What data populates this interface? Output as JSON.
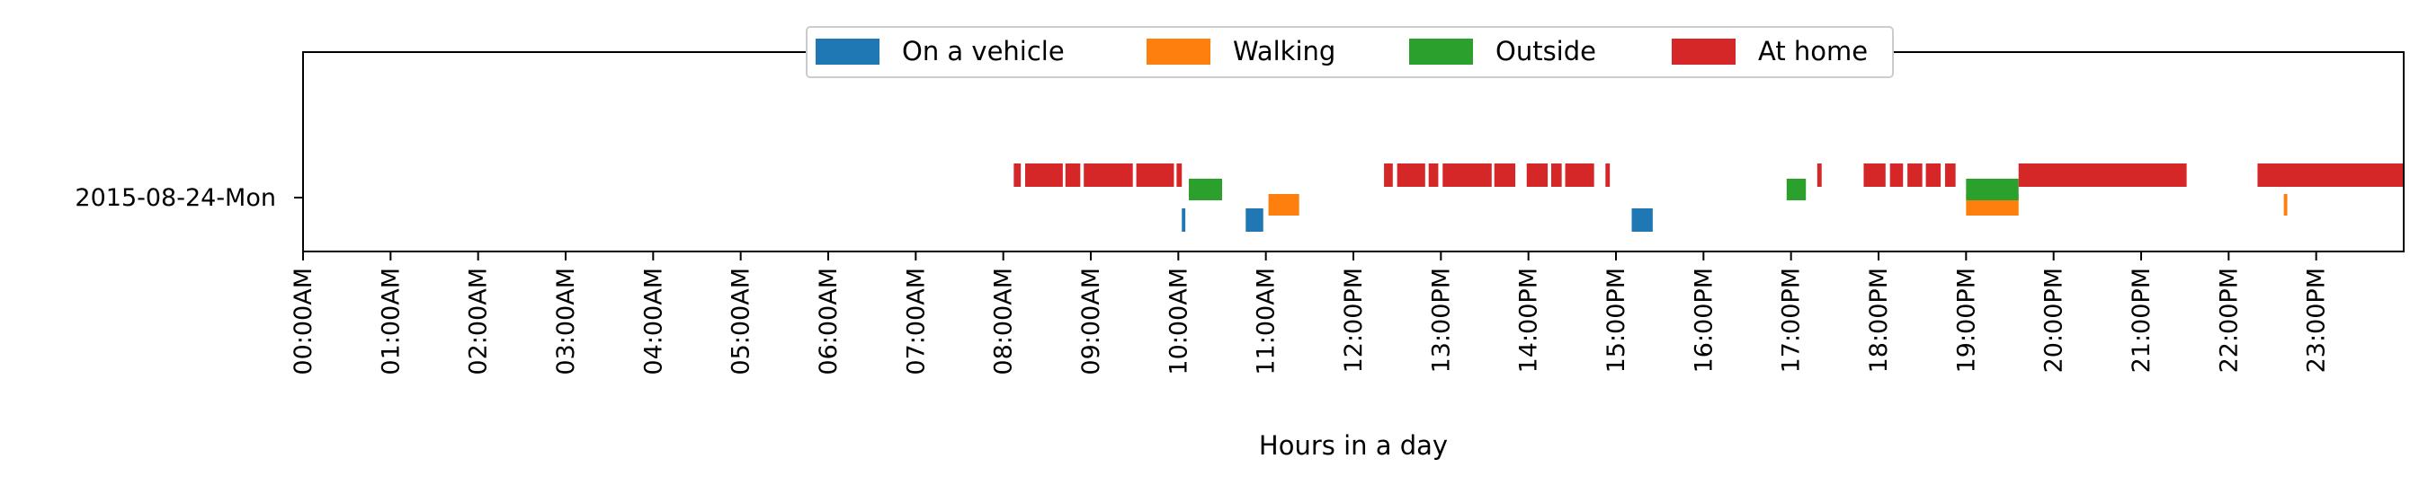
{
  "chart_data": {
    "type": "timeline",
    "title": "",
    "xlabel": "Hours in a day",
    "ylabel": "",
    "xlim": [
      0,
      24
    ],
    "grid": false,
    "legend_placement": "top-center",
    "row_label": "2015-08-24-Mon",
    "x_tick_labels": [
      "00:00AM",
      "01:00AM",
      "02:00AM",
      "03:00AM",
      "04:00AM",
      "05:00AM",
      "06:00AM",
      "07:00AM",
      "08:00AM",
      "09:00AM",
      "10:00AM",
      "11:00AM",
      "12:00PM",
      "13:00PM",
      "14:00PM",
      "15:00PM",
      "16:00PM",
      "17:00PM",
      "18:00PM",
      "19:00PM",
      "20:00PM",
      "21:00PM",
      "22:00PM",
      "23:00PM"
    ],
    "series": [
      {
        "name": "On a vehicle",
        "color": "#1f77b4",
        "intervals": [
          [
            10.04,
            10.08
          ],
          [
            10.77,
            10.97
          ],
          [
            15.18,
            15.42
          ]
        ]
      },
      {
        "name": "Walking",
        "color": "#ff7f0e",
        "intervals": [
          [
            11.03,
            11.38
          ],
          [
            19.0,
            19.6
          ],
          [
            22.63,
            22.67
          ]
        ]
      },
      {
        "name": "Outside",
        "color": "#2ca02c",
        "intervals": [
          [
            10.12,
            10.5
          ],
          [
            16.95,
            17.17
          ],
          [
            19.0,
            19.6
          ]
        ]
      },
      {
        "name": "At home",
        "color": "#d62728",
        "intervals": [
          [
            8.12,
            8.2
          ],
          [
            8.25,
            8.68
          ],
          [
            8.71,
            8.88
          ],
          [
            8.92,
            9.48
          ],
          [
            9.52,
            9.95
          ],
          [
            9.98,
            10.04
          ],
          [
            12.35,
            12.45
          ],
          [
            12.5,
            12.82
          ],
          [
            12.86,
            12.97
          ],
          [
            13.02,
            13.58
          ],
          [
            13.61,
            13.85
          ],
          [
            13.98,
            14.22
          ],
          [
            14.26,
            14.38
          ],
          [
            14.42,
            14.75
          ],
          [
            14.88,
            14.93
          ],
          [
            17.3,
            17.35
          ],
          [
            17.83,
            18.08
          ],
          [
            18.13,
            18.28
          ],
          [
            18.33,
            18.5
          ],
          [
            18.54,
            18.71
          ],
          [
            18.76,
            18.88
          ],
          [
            19.6,
            21.52
          ],
          [
            22.33,
            24.0
          ]
        ]
      }
    ]
  }
}
